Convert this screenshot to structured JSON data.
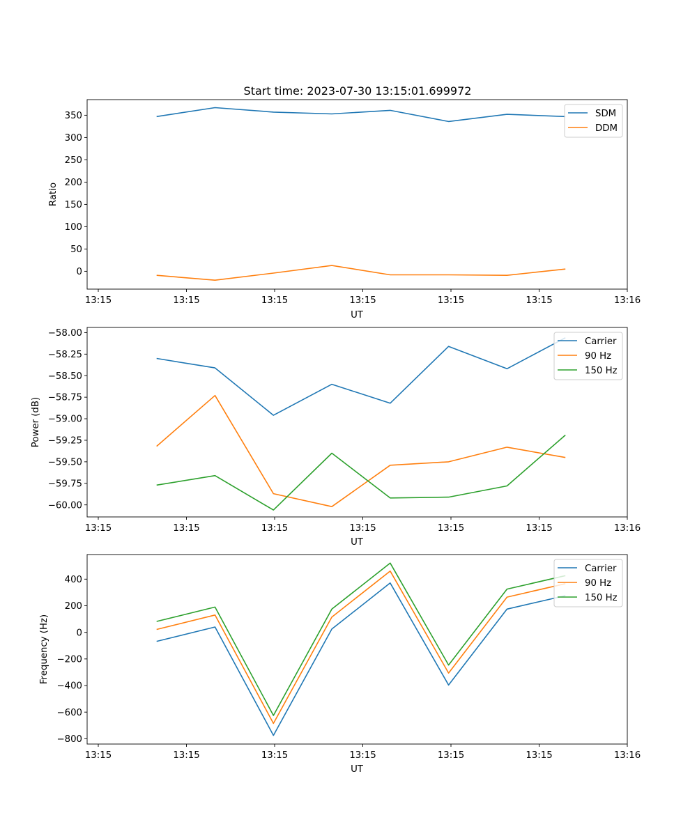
{
  "chart_data": [
    {
      "type": "line",
      "title": "Start time: 2023-07-30 13:15:01.699972",
      "xlabel": "UT",
      "ylabel": "Ratio",
      "x_ticks": [
        "13:15",
        "13:15",
        "13:15",
        "13:15",
        "13:15",
        "13:15",
        "13:16"
      ],
      "x": [
        1,
        2,
        3,
        4,
        5,
        6,
        7,
        8
      ],
      "xlim": [
        -0.19,
        9.06
      ],
      "ylim": [
        -40,
        385
      ],
      "y_ticks": [
        0,
        50,
        100,
        150,
        200,
        250,
        300,
        350
      ],
      "y_tick_labels": [
        "0",
        "50",
        "100",
        "150",
        "200",
        "250",
        "300",
        "350"
      ],
      "legend": "top-right",
      "series": [
        {
          "name": "SDM",
          "color": "#1f77b4",
          "values": [
            347,
            367,
            357,
            353,
            361,
            336,
            352,
            347
          ]
        },
        {
          "name": "DDM",
          "color": "#ff7f0e",
          "values": [
            -9,
            -20,
            -4,
            13,
            -8,
            -8,
            -9,
            5
          ]
        }
      ]
    },
    {
      "type": "line",
      "title": "",
      "xlabel": "UT",
      "ylabel": "Power (dB)",
      "x_ticks": [
        "13:15",
        "13:15",
        "13:15",
        "13:15",
        "13:15",
        "13:15",
        "13:16"
      ],
      "x": [
        1,
        2,
        3,
        4,
        5,
        6,
        7,
        8
      ],
      "xlim": [
        -0.19,
        9.06
      ],
      "ylim": [
        -60.14,
        -57.94
      ],
      "y_ticks": [
        -60.0,
        -59.75,
        -59.5,
        -59.25,
        -59.0,
        -58.75,
        -58.5,
        -58.25,
        -58.0
      ],
      "y_tick_labels": [
        "−60.00",
        "−59.75",
        "−59.50",
        "−59.25",
        "−59.00",
        "−58.75",
        "−58.50",
        "−58.25",
        "−58.00"
      ],
      "legend": "top-right",
      "series": [
        {
          "name": "Carrier",
          "color": "#1f77b4",
          "values": [
            -58.3,
            -58.41,
            -58.96,
            -58.6,
            -58.82,
            -58.16,
            -58.42,
            -58.06
          ]
        },
        {
          "name": "90 Hz",
          "color": "#ff7f0e",
          "values": [
            -59.32,
            -58.73,
            -59.87,
            -60.02,
            -59.54,
            -59.5,
            -59.33,
            -59.45
          ]
        },
        {
          "name": "150 Hz",
          "color": "#2ca02c",
          "values": [
            -59.77,
            -59.66,
            -60.06,
            -59.4,
            -59.92,
            -59.91,
            -59.78,
            -59.19
          ]
        }
      ]
    },
    {
      "type": "line",
      "title": "",
      "xlabel": "UT",
      "ylabel": "Frequency (Hz)",
      "x_ticks": [
        "13:15",
        "13:15",
        "13:15",
        "13:15",
        "13:15",
        "13:15",
        "13:16"
      ],
      "x": [
        1,
        2,
        3,
        4,
        5,
        6,
        7,
        8
      ],
      "xlim": [
        -0.19,
        9.06
      ],
      "ylim": [
        -840,
        585
      ],
      "y_ticks": [
        -800,
        -600,
        -400,
        -200,
        0,
        200,
        400
      ],
      "y_tick_labels": [
        "−800",
        "−600",
        "−400",
        "−200",
        "0",
        "200",
        "400"
      ],
      "legend": "top-right",
      "series": [
        {
          "name": "Carrier",
          "color": "#1f77b4",
          "values": [
            -68,
            40,
            -775,
            25,
            371,
            -396,
            175,
            276
          ]
        },
        {
          "name": "90 Hz",
          "color": "#ff7f0e",
          "values": [
            22,
            130,
            -685,
            115,
            461,
            -306,
            265,
            366
          ]
        },
        {
          "name": "150 Hz",
          "color": "#2ca02c",
          "values": [
            82,
            190,
            -625,
            175,
            521,
            -246,
            325,
            426
          ]
        }
      ]
    }
  ]
}
